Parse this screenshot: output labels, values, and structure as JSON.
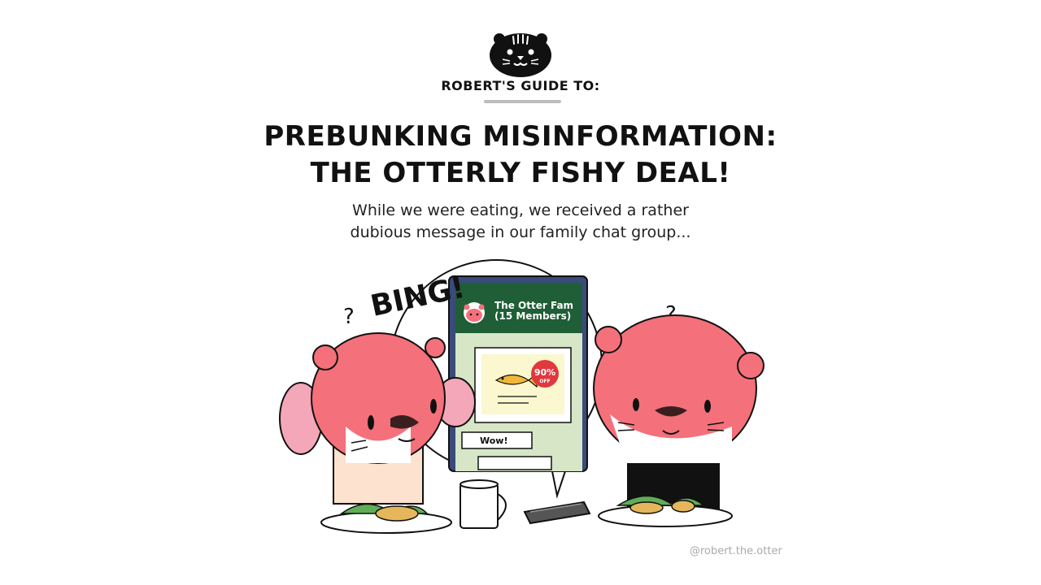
{
  "header": {
    "guide_label": "ROBERT'S GUIDE TO:"
  },
  "title": {
    "line1": "PREBUNKING MISINFORMATION:",
    "line2": "THE OTTERLY FISHY DEAL!"
  },
  "subtitle": {
    "line1": "While we were eating, we received a rather",
    "line2": "dubious message in our family chat group..."
  },
  "scene": {
    "sound_effect": "BING!",
    "question_mark": "?",
    "chat": {
      "group_name": "The Otter Fam",
      "member_count": "(15 Members)",
      "discount_value": "90%",
      "discount_suffix": "OFF",
      "reply_text": "Wow!"
    }
  },
  "footer": {
    "credit": "@robert.the.otter"
  },
  "colors": {
    "otter_pink": "#f4707a",
    "otter_dark_pink": "#e85864",
    "chat_header_green": "#1f5e36",
    "chat_body_green": "#d6e6c7",
    "badge_red": "#e0383e",
    "underline_grey": "#bdbdbd"
  }
}
